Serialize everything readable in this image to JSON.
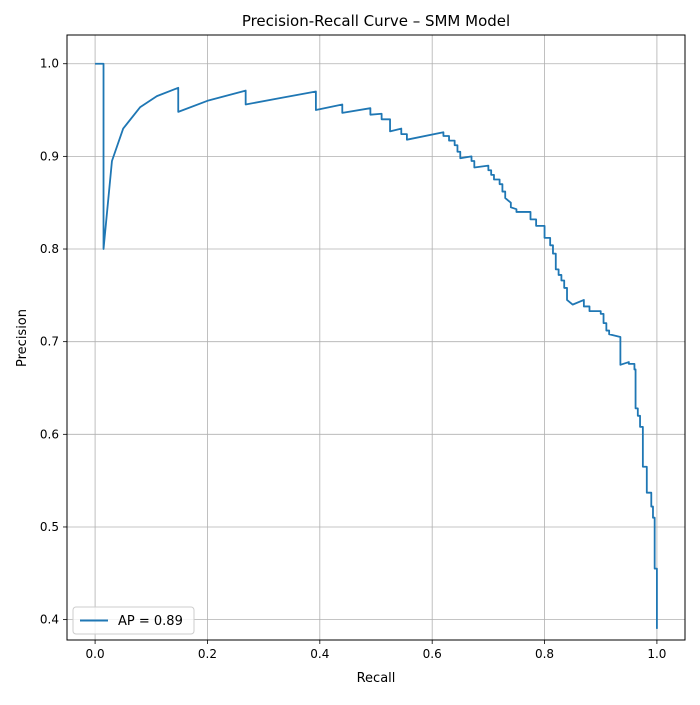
{
  "chart_data": {
    "type": "line",
    "title": "Precision-Recall Curve – SMM Model",
    "xlabel": "Recall",
    "ylabel": "Precision",
    "xlim": [
      -0.05,
      1.05
    ],
    "ylim": [
      0.378,
      1.031
    ],
    "x_ticks": [
      "0.0",
      "0.2",
      "0.4",
      "0.6",
      "0.8",
      "1.0"
    ],
    "y_ticks": [
      "0.4",
      "0.5",
      "0.6",
      "0.7",
      "0.8",
      "0.9",
      "1.0"
    ],
    "grid": true,
    "legend_position": "lower-left",
    "line_color": "#1f77b4",
    "series": [
      {
        "name": "AP = 0.89",
        "recall": [
          0.0,
          0.015,
          0.015,
          0.03,
          0.05,
          0.08,
          0.11,
          0.148,
          0.148,
          0.2,
          0.268,
          0.268,
          0.33,
          0.393,
          0.393,
          0.44,
          0.44,
          0.49,
          0.49,
          0.51,
          0.51,
          0.525,
          0.525,
          0.545,
          0.545,
          0.555,
          0.555,
          0.62,
          0.62,
          0.63,
          0.63,
          0.64,
          0.64,
          0.645,
          0.645,
          0.65,
          0.65,
          0.67,
          0.67,
          0.675,
          0.675,
          0.7,
          0.7,
          0.705,
          0.705,
          0.71,
          0.71,
          0.72,
          0.72,
          0.725,
          0.725,
          0.73,
          0.73,
          0.74,
          0.74,
          0.75,
          0.75,
          0.775,
          0.775,
          0.785,
          0.785,
          0.8,
          0.8,
          0.81,
          0.81,
          0.815,
          0.815,
          0.82,
          0.82,
          0.825,
          0.825,
          0.83,
          0.83,
          0.835,
          0.835,
          0.84,
          0.84,
          0.85,
          0.85,
          0.87,
          0.87,
          0.88,
          0.88,
          0.9,
          0.9,
          0.905,
          0.905,
          0.91,
          0.91,
          0.915,
          0.915,
          0.935,
          0.935,
          0.95,
          0.95,
          0.96,
          0.96,
          0.962,
          0.962,
          0.966,
          0.966,
          0.97,
          0.97,
          0.975,
          0.975,
          0.982,
          0.982,
          0.99,
          0.99,
          0.993,
          0.993,
          0.996,
          0.996,
          1.0,
          1.0
        ],
        "precision": [
          1.0,
          1.0,
          0.8,
          0.895,
          0.93,
          0.953,
          0.965,
          0.974,
          0.948,
          0.96,
          0.971,
          0.956,
          0.963,
          0.97,
          0.95,
          0.956,
          0.947,
          0.952,
          0.945,
          0.946,
          0.94,
          0.94,
          0.927,
          0.93,
          0.924,
          0.924,
          0.918,
          0.926,
          0.922,
          0.922,
          0.917,
          0.917,
          0.912,
          0.912,
          0.905,
          0.905,
          0.898,
          0.9,
          0.895,
          0.895,
          0.888,
          0.89,
          0.885,
          0.885,
          0.88,
          0.88,
          0.875,
          0.875,
          0.87,
          0.87,
          0.862,
          0.862,
          0.855,
          0.85,
          0.845,
          0.843,
          0.84,
          0.84,
          0.832,
          0.832,
          0.825,
          0.825,
          0.812,
          0.812,
          0.804,
          0.804,
          0.795,
          0.795,
          0.778,
          0.778,
          0.772,
          0.772,
          0.766,
          0.766,
          0.758,
          0.758,
          0.745,
          0.74,
          0.74,
          0.745,
          0.738,
          0.738,
          0.733,
          0.733,
          0.73,
          0.73,
          0.72,
          0.72,
          0.712,
          0.712,
          0.708,
          0.705,
          0.675,
          0.678,
          0.676,
          0.676,
          0.67,
          0.67,
          0.628,
          0.628,
          0.62,
          0.62,
          0.608,
          0.608,
          0.565,
          0.565,
          0.537,
          0.537,
          0.522,
          0.522,
          0.51,
          0.51,
          0.455,
          0.455,
          0.39
        ]
      }
    ]
  }
}
